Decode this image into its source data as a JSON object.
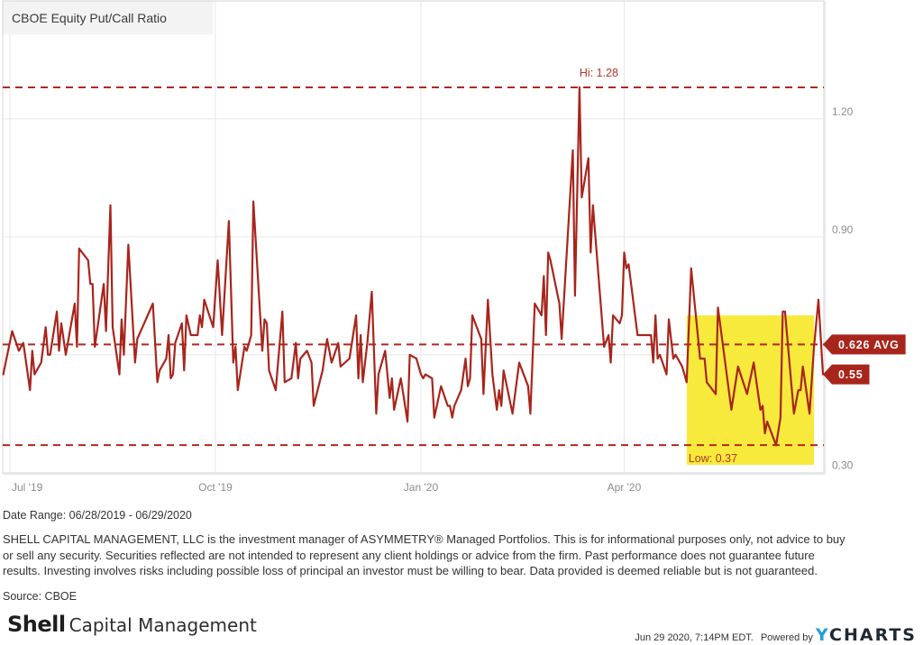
{
  "chart_data": {
    "type": "line",
    "title": "CBOE Equity Put/Call Ratio",
    "xlabel": "",
    "ylabel": "",
    "x_range": [
      "2019-06-28",
      "2020-06-29"
    ],
    "ylim": [
      0.3,
      1.5
    ],
    "grid": true,
    "y_gridlines": [
      0.6,
      0.9,
      1.2
    ],
    "y_tick_labels": [
      {
        "value": 1.2,
        "label": "1.20"
      },
      {
        "value": 0.9,
        "label": "0.90"
      },
      {
        "value": 0.3,
        "label": "0.30"
      }
    ],
    "x_ticks": [
      {
        "date": "2019-07-01",
        "label": "Jul '19"
      },
      {
        "date": "2019-10-01",
        "label": "Oct '19"
      },
      {
        "date": "2020-01-01",
        "label": "Jan '20"
      },
      {
        "date": "2020-04-01",
        "label": "Apr '20"
      }
    ],
    "reference_lines": {
      "high": {
        "value": 1.28,
        "date": "2020-03-12",
        "label": "Hi: 1.28"
      },
      "average": {
        "value": 0.626,
        "label": "0.626 AVG"
      },
      "low": {
        "value": 0.37,
        "date": "2020-06-08",
        "label": "Low: 0.37"
      },
      "last": {
        "value": 0.55,
        "label": "0.55"
      }
    },
    "highlight": {
      "start": "2020-04-29",
      "end": "2020-06-25",
      "y_low": 0.32,
      "y_high": 0.7
    },
    "colors": {
      "series": "#a8251c",
      "reference": "#b3261e",
      "tag": "#a8251c",
      "highlight": "#f8ea3c",
      "grid": "#e7e7e7",
      "frame": "#d4d4d4",
      "title_box": "#f3f3f3"
    },
    "series": [
      {
        "name": "CBOE Equity Put/Call Ratio",
        "points": [
          [
            "2019-06-28",
            0.55
          ],
          [
            "2019-07-02",
            0.66
          ],
          [
            "2019-07-05",
            0.61
          ],
          [
            "2019-07-07",
            0.63
          ],
          [
            "2019-07-10",
            0.51
          ],
          [
            "2019-07-11",
            0.61
          ],
          [
            "2019-07-12",
            0.55
          ],
          [
            "2019-07-15",
            0.58
          ],
          [
            "2019-07-17",
            0.67
          ],
          [
            "2019-07-18",
            0.6
          ],
          [
            "2019-07-19",
            0.6
          ],
          [
            "2019-07-22",
            0.71
          ],
          [
            "2019-07-23",
            0.61
          ],
          [
            "2019-07-24",
            0.68
          ],
          [
            "2019-07-26",
            0.6
          ],
          [
            "2019-07-30",
            0.73
          ],
          [
            "2019-07-31",
            0.62
          ],
          [
            "2019-08-01",
            0.87
          ],
          [
            "2019-08-05",
            0.84
          ],
          [
            "2019-08-06",
            0.78
          ],
          [
            "2019-08-07",
            0.78
          ],
          [
            "2019-08-08",
            0.62
          ],
          [
            "2019-08-12",
            0.78
          ],
          [
            "2019-08-13",
            0.66
          ],
          [
            "2019-08-15",
            0.98
          ],
          [
            "2019-08-16",
            0.67
          ],
          [
            "2019-08-19",
            0.55
          ],
          [
            "2019-08-20",
            0.69
          ],
          [
            "2019-08-21",
            0.6
          ],
          [
            "2019-08-23",
            0.88
          ],
          [
            "2019-08-26",
            0.58
          ],
          [
            "2019-08-27",
            0.64
          ],
          [
            "2019-09-03",
            0.73
          ],
          [
            "2019-09-05",
            0.53
          ],
          [
            "2019-09-06",
            0.56
          ],
          [
            "2019-09-09",
            0.59
          ],
          [
            "2019-09-10",
            0.65
          ],
          [
            "2019-09-11",
            0.54
          ],
          [
            "2019-09-12",
            0.55
          ],
          [
            "2019-09-13",
            0.63
          ],
          [
            "2019-09-16",
            0.68
          ],
          [
            "2019-09-17",
            0.56
          ],
          [
            "2019-09-18",
            0.7
          ],
          [
            "2019-09-20",
            0.65
          ],
          [
            "2019-09-23",
            0.65
          ],
          [
            "2019-09-24",
            0.7
          ],
          [
            "2019-09-25",
            0.67
          ],
          [
            "2019-09-26",
            0.74
          ],
          [
            "2019-09-30",
            0.67
          ],
          [
            "2019-10-02",
            0.84
          ],
          [
            "2019-10-04",
            0.65
          ],
          [
            "2019-10-07",
            0.94
          ],
          [
            "2019-10-09",
            0.58
          ],
          [
            "2019-10-10",
            0.62
          ],
          [
            "2019-10-11",
            0.51
          ],
          [
            "2019-10-14",
            0.62
          ],
          [
            "2019-10-15",
            0.61
          ],
          [
            "2019-10-17",
            0.65
          ],
          [
            "2019-10-18",
            0.99
          ],
          [
            "2019-10-22",
            0.61
          ],
          [
            "2019-10-23",
            0.69
          ],
          [
            "2019-10-24",
            0.68
          ],
          [
            "2019-10-25",
            0.56
          ],
          [
            "2019-10-28",
            0.51
          ],
          [
            "2019-10-31",
            0.71
          ],
          [
            "2019-11-01",
            0.53
          ],
          [
            "2019-11-04",
            0.54
          ],
          [
            "2019-11-06",
            0.63
          ],
          [
            "2019-11-07",
            0.54
          ],
          [
            "2019-11-08",
            0.59
          ],
          [
            "2019-11-11",
            0.61
          ],
          [
            "2019-11-13",
            0.58
          ],
          [
            "2019-11-14",
            0.47
          ],
          [
            "2019-11-18",
            0.56
          ],
          [
            "2019-11-20",
            0.64
          ],
          [
            "2019-11-22",
            0.58
          ],
          [
            "2019-11-25",
            0.63
          ],
          [
            "2019-11-26",
            0.57
          ],
          [
            "2019-11-30",
            0.59
          ],
          [
            "2019-12-03",
            0.7
          ],
          [
            "2019-12-04",
            0.54
          ],
          [
            "2019-12-05",
            0.65
          ],
          [
            "2019-12-06",
            0.53
          ],
          [
            "2019-12-08",
            0.63
          ],
          [
            "2019-12-10",
            0.76
          ],
          [
            "2019-12-12",
            0.45
          ],
          [
            "2019-12-13",
            0.55
          ],
          [
            "2019-12-16",
            0.61
          ],
          [
            "2019-12-18",
            0.49
          ],
          [
            "2019-12-19",
            0.54
          ],
          [
            "2019-12-20",
            0.46
          ],
          [
            "2019-12-23",
            0.54
          ],
          [
            "2019-12-26",
            0.43
          ],
          [
            "2019-12-27",
            0.6
          ],
          [
            "2019-12-30",
            0.59
          ],
          [
            "2020-01-01",
            0.55
          ],
          [
            "2020-01-02",
            0.54
          ],
          [
            "2020-01-03",
            0.55
          ],
          [
            "2020-01-06",
            0.54
          ],
          [
            "2020-01-07",
            0.44
          ],
          [
            "2020-01-10",
            0.52
          ],
          [
            "2020-01-13",
            0.47
          ],
          [
            "2020-01-14",
            0.47
          ],
          [
            "2020-01-15",
            0.44
          ],
          [
            "2020-01-16",
            0.47
          ],
          [
            "2020-01-19",
            0.51
          ],
          [
            "2020-01-21",
            0.59
          ],
          [
            "2020-01-22",
            0.52
          ],
          [
            "2020-01-23",
            0.54
          ],
          [
            "2020-01-24",
            0.7
          ],
          [
            "2020-01-28",
            0.64
          ],
          [
            "2020-01-29",
            0.5
          ],
          [
            "2020-01-31",
            0.74
          ],
          [
            "2020-02-02",
            0.55
          ],
          [
            "2020-02-04",
            0.46
          ],
          [
            "2020-02-05",
            0.51
          ],
          [
            "2020-02-06",
            0.47
          ],
          [
            "2020-02-07",
            0.56
          ],
          [
            "2020-02-11",
            0.45
          ],
          [
            "2020-02-14",
            0.58
          ],
          [
            "2020-02-18",
            0.52
          ],
          [
            "2020-02-19",
            0.45
          ],
          [
            "2020-02-21",
            0.73
          ],
          [
            "2020-02-24",
            0.7
          ],
          [
            "2020-02-25",
            0.8
          ],
          [
            "2020-02-26",
            0.65
          ],
          [
            "2020-02-27",
            0.86
          ],
          [
            "2020-02-28",
            0.84
          ],
          [
            "2020-03-03",
            0.73
          ],
          [
            "2020-03-04",
            0.64
          ],
          [
            "2020-03-09",
            1.12
          ],
          [
            "2020-03-10",
            0.75
          ],
          [
            "2020-03-12",
            1.28
          ],
          [
            "2020-03-13",
            1.0
          ],
          [
            "2020-03-16",
            1.1
          ],
          [
            "2020-03-17",
            0.86
          ],
          [
            "2020-03-18",
            0.98
          ],
          [
            "2020-03-23",
            0.62
          ],
          [
            "2020-03-25",
            0.65
          ],
          [
            "2020-03-26",
            0.58
          ],
          [
            "2020-03-27",
            0.7
          ],
          [
            "2020-03-30",
            0.68
          ],
          [
            "2020-03-31",
            0.7
          ],
          [
            "2020-04-01",
            0.86
          ],
          [
            "2020-04-02",
            0.82
          ],
          [
            "2020-04-03",
            0.83
          ],
          [
            "2020-04-07",
            0.65
          ],
          [
            "2020-04-13",
            0.65
          ],
          [
            "2020-04-14",
            0.58
          ],
          [
            "2020-04-15",
            0.7
          ],
          [
            "2020-04-16",
            0.59
          ],
          [
            "2020-04-17",
            0.6
          ],
          [
            "2020-04-20",
            0.55
          ],
          [
            "2020-04-21",
            0.69
          ],
          [
            "2020-04-23",
            0.59
          ],
          [
            "2020-04-24",
            0.6
          ],
          [
            "2020-04-27",
            0.57
          ],
          [
            "2020-04-29",
            0.53
          ],
          [
            "2020-05-01",
            0.82
          ],
          [
            "2020-05-05",
            0.59
          ],
          [
            "2020-05-07",
            0.59
          ],
          [
            "2020-05-08",
            0.53
          ],
          [
            "2020-05-12",
            0.5
          ],
          [
            "2020-05-13",
            0.72
          ],
          [
            "2020-05-19",
            0.46
          ],
          [
            "2020-05-22",
            0.57
          ],
          [
            "2020-05-26",
            0.5
          ],
          [
            "2020-05-29",
            0.58
          ],
          [
            "2020-06-01",
            0.46
          ],
          [
            "2020-06-02",
            0.47
          ],
          [
            "2020-06-03",
            0.4
          ],
          [
            "2020-06-04",
            0.43
          ],
          [
            "2020-06-08",
            0.37
          ],
          [
            "2020-06-10",
            0.44
          ],
          [
            "2020-06-11",
            0.71
          ],
          [
            "2020-06-12",
            0.71
          ],
          [
            "2020-06-16",
            0.45
          ],
          [
            "2020-06-18",
            0.51
          ],
          [
            "2020-06-19",
            0.51
          ],
          [
            "2020-06-20",
            0.57
          ],
          [
            "2020-06-23",
            0.45
          ],
          [
            "2020-06-25",
            0.62
          ],
          [
            "2020-06-27",
            0.74
          ],
          [
            "2020-06-29",
            0.55
          ]
        ]
      }
    ]
  },
  "footer": {
    "date_range": "Date Range: 06/28/2019 - 06/29/2020",
    "disclaimer_lines": [
      "SHELL CAPITAL MANAGEMENT, LLC is the investment manager of ASYMMETRY® Managed Portfolios. This is for informational purposes only, not advice to buy",
      "or sell any security. Securities reflected are not intended to represent any client holdings or advice from the firm. Past performance does not guarantee future",
      "results. Investing involves risks including possible loss of principal an investor must be willing to bear. Data provided is deemed reliable but is not guaranteed."
    ],
    "source": "Source: CBOE",
    "timestamp": "Jun 29 2020, 7:14PM EDT.",
    "powered_by": "Powered by",
    "ycharts_logo": {
      "first": "Y",
      "rest": "CHARTS"
    }
  },
  "branding": {
    "company_bold": "Shell",
    "company_rest": "Capital Management"
  }
}
